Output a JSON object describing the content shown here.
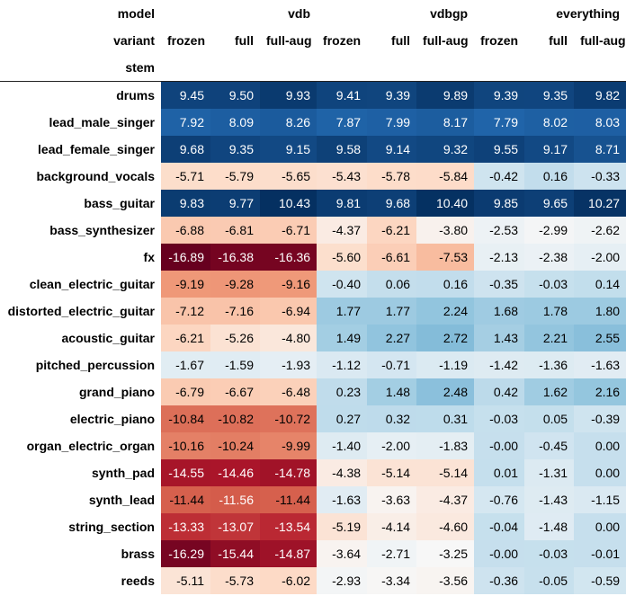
{
  "chart_data": {
    "type": "table",
    "header_labels": {
      "model": "model",
      "variant": "variant",
      "stem": "stem"
    },
    "models": [
      "vdb",
      "vdbgp",
      "everything"
    ],
    "variants": [
      "frozen",
      "full",
      "full-aug"
    ],
    "columns": [
      {
        "model": "vdb",
        "variant": "frozen"
      },
      {
        "model": "vdb",
        "variant": "full"
      },
      {
        "model": "vdb",
        "variant": "full-aug"
      },
      {
        "model": "vdbgp",
        "variant": "frozen"
      },
      {
        "model": "vdbgp",
        "variant": "full"
      },
      {
        "model": "vdbgp",
        "variant": "full-aug"
      },
      {
        "model": "everything",
        "variant": "frozen"
      },
      {
        "model": "everything",
        "variant": "full"
      },
      {
        "model": "everything",
        "variant": "full-aug"
      }
    ],
    "colormap": "RdBu",
    "color_range": [
      -16.89,
      10.43
    ],
    "rows": [
      {
        "stem": "drums",
        "values": [
          "9.45",
          "9.50",
          "9.93",
          "9.41",
          "9.39",
          "9.89",
          "9.39",
          "9.35",
          "9.82"
        ]
      },
      {
        "stem": "lead_male_singer",
        "values": [
          "7.92",
          "8.09",
          "8.26",
          "7.87",
          "7.99",
          "8.17",
          "7.79",
          "8.02",
          "8.03"
        ]
      },
      {
        "stem": "lead_female_singer",
        "values": [
          "9.68",
          "9.35",
          "9.15",
          "9.58",
          "9.14",
          "9.32",
          "9.55",
          "9.17",
          "8.71"
        ]
      },
      {
        "stem": "background_vocals",
        "values": [
          "-5.71",
          "-5.79",
          "-5.65",
          "-5.43",
          "-5.78",
          "-5.84",
          "-0.42",
          "0.16",
          "-0.33"
        ]
      },
      {
        "stem": "bass_guitar",
        "values": [
          "9.83",
          "9.77",
          "10.43",
          "9.81",
          "9.68",
          "10.40",
          "9.85",
          "9.65",
          "10.27"
        ]
      },
      {
        "stem": "bass_synthesizer",
        "values": [
          "-6.88",
          "-6.81",
          "-6.71",
          "-4.37",
          "-6.21",
          "-3.80",
          "-2.53",
          "-2.99",
          "-2.62"
        ]
      },
      {
        "stem": "fx",
        "values": [
          "-16.89",
          "-16.38",
          "-16.36",
          "-5.60",
          "-6.61",
          "-7.53",
          "-2.13",
          "-2.38",
          "-2.00"
        ]
      },
      {
        "stem": "clean_electric_guitar",
        "values": [
          "-9.19",
          "-9.28",
          "-9.16",
          "-0.40",
          "0.06",
          "0.16",
          "-0.35",
          "-0.03",
          "0.14"
        ]
      },
      {
        "stem": "distorted_electric_guitar",
        "values": [
          "-7.12",
          "-7.16",
          "-6.94",
          "1.77",
          "1.77",
          "2.24",
          "1.68",
          "1.78",
          "1.80"
        ]
      },
      {
        "stem": "acoustic_guitar",
        "values": [
          "-6.21",
          "-5.26",
          "-4.80",
          "1.49",
          "2.27",
          "2.72",
          "1.43",
          "2.21",
          "2.55"
        ]
      },
      {
        "stem": "pitched_percussion",
        "values": [
          "-1.67",
          "-1.59",
          "-1.93",
          "-1.12",
          "-0.71",
          "-1.19",
          "-1.42",
          "-1.36",
          "-1.63"
        ]
      },
      {
        "stem": "grand_piano",
        "values": [
          "-6.79",
          "-6.67",
          "-6.48",
          "0.23",
          "1.48",
          "2.48",
          "0.42",
          "1.62",
          "2.16"
        ]
      },
      {
        "stem": "electric_piano",
        "values": [
          "-10.84",
          "-10.82",
          "-10.72",
          "0.27",
          "0.32",
          "0.31",
          "-0.03",
          "0.05",
          "-0.39"
        ]
      },
      {
        "stem": "organ_electric_organ",
        "values": [
          "-10.16",
          "-10.24",
          "-9.99",
          "-1.40",
          "-2.00",
          "-1.83",
          "-0.00",
          "-0.45",
          "0.00"
        ]
      },
      {
        "stem": "synth_pad",
        "values": [
          "-14.55",
          "-14.46",
          "-14.78",
          "-4.38",
          "-5.14",
          "-5.14",
          "0.01",
          "-1.31",
          "0.00"
        ]
      },
      {
        "stem": "synth_lead",
        "values": [
          "-11.44",
          "-11.56",
          "-11.44",
          "-1.63",
          "-3.63",
          "-4.37",
          "-0.76",
          "-1.43",
          "-1.15"
        ]
      },
      {
        "stem": "string_section",
        "values": [
          "-13.33",
          "-13.07",
          "-13.54",
          "-5.19",
          "-4.14",
          "-4.60",
          "-0.04",
          "-1.48",
          "0.00"
        ]
      },
      {
        "stem": "brass",
        "values": [
          "-16.29",
          "-15.44",
          "-14.87",
          "-3.64",
          "-2.71",
          "-3.25",
          "-0.00",
          "-0.03",
          "-0.01"
        ]
      },
      {
        "stem": "reeds",
        "values": [
          "-5.11",
          "-5.73",
          "-6.02",
          "-2.93",
          "-3.34",
          "-3.56",
          "-0.36",
          "-0.05",
          "-0.59"
        ]
      }
    ]
  }
}
